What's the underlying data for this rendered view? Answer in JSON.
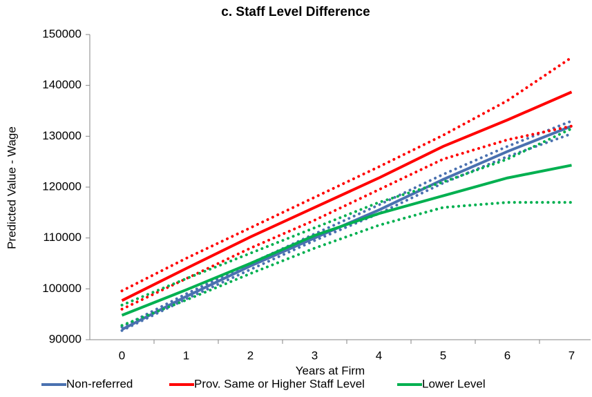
{
  "chart_data": {
    "type": "line",
    "title": "c. Staff Level Difference",
    "x_label": "Years at Firm",
    "y_label": "Predicted Value - Wage",
    "categories": [
      "0",
      "1",
      "2",
      "3",
      "4",
      "5",
      "6",
      "7"
    ],
    "ylim": [
      90000,
      150000
    ],
    "yticks": [
      90000,
      100000,
      110000,
      120000,
      130000,
      140000,
      150000
    ],
    "legend": "bottom",
    "series": [
      {
        "name": "Non-referred",
        "color": "#4a71b0",
        "values": [
          92000,
          98500,
          104500,
          110000,
          115500,
          121500,
          127000,
          132000
        ],
        "upper": [
          92500,
          99000,
          105000,
          110800,
          116500,
          122500,
          128000,
          133000
        ],
        "lower": [
          91800,
          98000,
          103800,
          109500,
          114800,
          120800,
          126000,
          130500
        ]
      },
      {
        "name": "Prov. Same or Higher Staff Level",
        "color": "#ff0000",
        "values": [
          97700,
          104000,
          110200,
          116000,
          121800,
          128000,
          133200,
          138700
        ],
        "upper": [
          99600,
          106000,
          112000,
          118000,
          124000,
          130200,
          137000,
          145500
        ],
        "lower": [
          96000,
          102000,
          108000,
          113500,
          119500,
          125500,
          129300,
          132000
        ]
      },
      {
        "name": "Lower Level",
        "color": "#00b050",
        "values": [
          94800,
          99800,
          105000,
          110500,
          114800,
          118300,
          121800,
          124300
        ],
        "upper": [
          96800,
          102000,
          107000,
          112000,
          117000,
          121000,
          125500,
          131500
        ],
        "lower": [
          92800,
          97800,
          103000,
          108000,
          112500,
          116000,
          117000,
          117000
        ]
      }
    ]
  }
}
